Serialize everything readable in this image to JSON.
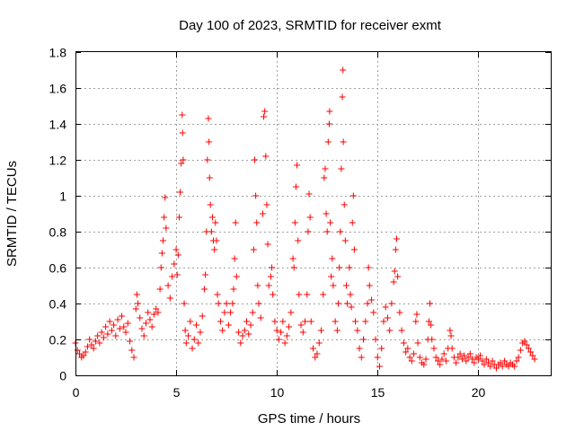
{
  "chart_data": {
    "type": "scatter",
    "title": "Day 100 of 2023, SRMTID for receiver exmt",
    "xlabel": "GPS time / hours",
    "ylabel": "SRMTID / TECUs",
    "xlim": [
      0,
      23.6
    ],
    "ylim": [
      0,
      1.8
    ],
    "xticks": [
      0,
      5,
      10,
      15,
      20
    ],
    "xtick_labels": [
      "0",
      "5",
      "10",
      "15",
      "20"
    ],
    "yticks": [
      0,
      0.2,
      0.4,
      0.6,
      0.8,
      1,
      1.2,
      1.4,
      1.6,
      1.8
    ],
    "ytick_labels": [
      "0",
      "0.2",
      "0.4",
      "0.6",
      "0.8",
      "1",
      "1.2",
      "1.4",
      "1.6",
      "1.8"
    ],
    "grid": true,
    "marker": "plus",
    "color": "#ff0000",
    "series": [
      {
        "name": "SRMTID",
        "points": [
          [
            0.0,
            0.18
          ],
          [
            0.1,
            0.14
          ],
          [
            0.2,
            0.12
          ],
          [
            0.3,
            0.1
          ],
          [
            0.4,
            0.11
          ],
          [
            0.5,
            0.13
          ],
          [
            0.6,
            0.16
          ],
          [
            0.7,
            0.2
          ],
          [
            0.8,
            0.17
          ],
          [
            0.9,
            0.15
          ],
          [
            1.0,
            0.19
          ],
          [
            1.1,
            0.22
          ],
          [
            1.2,
            0.18
          ],
          [
            1.3,
            0.24
          ],
          [
            1.4,
            0.21
          ],
          [
            1.5,
            0.27
          ],
          [
            1.6,
            0.23
          ],
          [
            1.7,
            0.3
          ],
          [
            1.8,
            0.25
          ],
          [
            1.9,
            0.28
          ],
          [
            2.0,
            0.22
          ],
          [
            2.1,
            0.31
          ],
          [
            2.2,
            0.26
          ],
          [
            2.3,
            0.33
          ],
          [
            2.4,
            0.27
          ],
          [
            2.5,
            0.24
          ],
          [
            2.6,
            0.29
          ],
          [
            2.7,
            0.19
          ],
          [
            2.8,
            0.14
          ],
          [
            2.9,
            0.1
          ],
          [
            3.0,
            0.37
          ],
          [
            3.05,
            0.45
          ],
          [
            3.1,
            0.4
          ],
          [
            3.2,
            0.32
          ],
          [
            3.3,
            0.26
          ],
          [
            3.4,
            0.22
          ],
          [
            3.5,
            0.29
          ],
          [
            3.6,
            0.35
          ],
          [
            3.7,
            0.31
          ],
          [
            3.8,
            0.27
          ],
          [
            3.9,
            0.34
          ],
          [
            4.0,
            0.37
          ],
          [
            4.1,
            0.35
          ],
          [
            4.2,
            0.48
          ],
          [
            4.25,
            0.6
          ],
          [
            4.3,
            0.68
          ],
          [
            4.35,
            0.75
          ],
          [
            4.4,
            0.88
          ],
          [
            4.45,
            0.99
          ],
          [
            4.5,
            0.82
          ],
          [
            4.6,
            0.5
          ],
          [
            4.7,
            0.43
          ],
          [
            4.8,
            0.55
          ],
          [
            4.9,
            0.62
          ],
          [
            5.0,
            0.7
          ],
          [
            5.05,
            0.56
          ],
          [
            5.1,
            0.67
          ],
          [
            5.15,
            0.88
          ],
          [
            5.2,
            1.02
          ],
          [
            5.25,
            1.18
          ],
          [
            5.3,
            1.45
          ],
          [
            5.32,
            1.35
          ],
          [
            5.35,
            1.2
          ],
          [
            5.4,
            0.4
          ],
          [
            5.45,
            0.25
          ],
          [
            5.5,
            0.18
          ],
          [
            5.6,
            0.22
          ],
          [
            5.7,
            0.3
          ],
          [
            5.8,
            0.15
          ],
          [
            5.9,
            0.2
          ],
          [
            6.0,
            0.28
          ],
          [
            6.1,
            0.18
          ],
          [
            6.2,
            0.24
          ],
          [
            6.3,
            0.33
          ],
          [
            6.4,
            0.48
          ],
          [
            6.45,
            0.56
          ],
          [
            6.5,
            0.8
          ],
          [
            6.55,
            1.2
          ],
          [
            6.6,
            1.43
          ],
          [
            6.63,
            1.3
          ],
          [
            6.66,
            1.1
          ],
          [
            6.7,
            0.95
          ],
          [
            6.75,
            0.8
          ],
          [
            6.8,
            0.88
          ],
          [
            6.85,
            0.75
          ],
          [
            6.9,
            0.7
          ],
          [
            6.95,
            0.85
          ],
          [
            7.0,
            0.75
          ],
          [
            7.05,
            0.45
          ],
          [
            7.1,
            0.4
          ],
          [
            7.2,
            0.3
          ],
          [
            7.3,
            0.25
          ],
          [
            7.4,
            0.35
          ],
          [
            7.5,
            0.4
          ],
          [
            7.6,
            0.28
          ],
          [
            7.7,
            0.35
          ],
          [
            7.8,
            0.4
          ],
          [
            7.85,
            0.48
          ],
          [
            7.9,
            0.65
          ],
          [
            7.95,
            0.85
          ],
          [
            8.0,
            0.55
          ],
          [
            8.1,
            0.24
          ],
          [
            8.2,
            0.18
          ],
          [
            8.3,
            0.22
          ],
          [
            8.4,
            0.25
          ],
          [
            8.5,
            0.3
          ],
          [
            8.6,
            0.23
          ],
          [
            8.7,
            0.28
          ],
          [
            8.8,
            0.35
          ],
          [
            8.85,
            0.7
          ],
          [
            8.9,
            1.2
          ],
          [
            8.95,
            1.0
          ],
          [
            9.0,
            0.85
          ],
          [
            9.05,
            0.5
          ],
          [
            9.1,
            0.4
          ],
          [
            9.2,
            0.32
          ],
          [
            9.3,
            0.9
          ],
          [
            9.35,
            1.44
          ],
          [
            9.4,
            1.47
          ],
          [
            9.45,
            1.22
          ],
          [
            9.5,
            0.95
          ],
          [
            9.55,
            0.73
          ],
          [
            9.6,
            0.5
          ],
          [
            9.7,
            0.55
          ],
          [
            9.75,
            0.6
          ],
          [
            9.8,
            0.45
          ],
          [
            9.9,
            0.3
          ],
          [
            10.0,
            0.25
          ],
          [
            10.1,
            0.2
          ],
          [
            10.2,
            0.24
          ],
          [
            10.3,
            0.3
          ],
          [
            10.4,
            0.18
          ],
          [
            10.5,
            0.22
          ],
          [
            10.6,
            0.27
          ],
          [
            10.7,
            0.35
          ],
          [
            10.8,
            0.65
          ],
          [
            10.85,
            0.6
          ],
          [
            10.9,
            0.85
          ],
          [
            10.95,
            1.05
          ],
          [
            11.0,
            1.17
          ],
          [
            11.05,
            0.75
          ],
          [
            11.1,
            0.45
          ],
          [
            11.2,
            0.28
          ],
          [
            11.3,
            0.24
          ],
          [
            11.4,
            0.3
          ],
          [
            11.5,
            0.45
          ],
          [
            11.55,
            0.8
          ],
          [
            11.6,
            1.01
          ],
          [
            11.65,
            0.88
          ],
          [
            11.7,
            0.3
          ],
          [
            11.8,
            0.15
          ],
          [
            11.9,
            0.1
          ],
          [
            12.0,
            0.12
          ],
          [
            12.1,
            0.18
          ],
          [
            12.2,
            0.25
          ],
          [
            12.3,
            0.45
          ],
          [
            12.35,
            1.1
          ],
          [
            12.4,
            1.15
          ],
          [
            12.45,
            0.9
          ],
          [
            12.5,
            0.8
          ],
          [
            12.55,
            1.3
          ],
          [
            12.6,
            1.4
          ],
          [
            12.62,
            1.47
          ],
          [
            12.65,
            0.85
          ],
          [
            12.7,
            0.55
          ],
          [
            12.75,
            0.65
          ],
          [
            12.8,
            0.5
          ],
          [
            12.9,
            0.3
          ],
          [
            13.0,
            0.25
          ],
          [
            13.05,
            0.4
          ],
          [
            13.1,
            0.6
          ],
          [
            13.15,
            0.8
          ],
          [
            13.2,
            1.15
          ],
          [
            13.25,
            1.55
          ],
          [
            13.28,
            1.7
          ],
          [
            13.3,
            1.3
          ],
          [
            13.35,
            0.95
          ],
          [
            13.4,
            0.75
          ],
          [
            13.45,
            0.5
          ],
          [
            13.5,
            0.4
          ],
          [
            13.6,
            0.6
          ],
          [
            13.65,
            0.45
          ],
          [
            13.7,
            0.38
          ],
          [
            13.75,
            0.85
          ],
          [
            13.8,
            1.0
          ],
          [
            13.85,
            0.7
          ],
          [
            13.9,
            0.3
          ],
          [
            14.0,
            0.25
          ],
          [
            14.1,
            0.15
          ],
          [
            14.2,
            0.1
          ],
          [
            14.3,
            0.2
          ],
          [
            14.4,
            0.3
          ],
          [
            14.5,
            0.4
          ],
          [
            14.55,
            0.6
          ],
          [
            14.6,
            0.5
          ],
          [
            14.7,
            0.42
          ],
          [
            14.8,
            0.35
          ],
          [
            14.9,
            0.2
          ],
          [
            15.0,
            0.1
          ],
          [
            15.1,
            0.05
          ],
          [
            15.2,
            0.15
          ],
          [
            15.3,
            0.3
          ],
          [
            15.4,
            0.38
          ],
          [
            15.5,
            0.32
          ],
          [
            15.6,
            0.25
          ],
          [
            15.7,
            0.4
          ],
          [
            15.8,
            0.52
          ],
          [
            15.85,
            0.58
          ],
          [
            15.9,
            0.7
          ],
          [
            15.95,
            0.76
          ],
          [
            16.0,
            0.55
          ],
          [
            16.1,
            0.35
          ],
          [
            16.2,
            0.25
          ],
          [
            16.3,
            0.18
          ],
          [
            16.4,
            0.13
          ],
          [
            16.5,
            0.15
          ],
          [
            16.6,
            0.1
          ],
          [
            16.7,
            0.08
          ],
          [
            16.8,
            0.12
          ],
          [
            16.9,
            0.3
          ],
          [
            16.95,
            0.34
          ],
          [
            17.0,
            0.18
          ],
          [
            17.1,
            0.1
          ],
          [
            17.2,
            0.07
          ],
          [
            17.3,
            0.06
          ],
          [
            17.4,
            0.09
          ],
          [
            17.5,
            0.2
          ],
          [
            17.55,
            0.3
          ],
          [
            17.6,
            0.4
          ],
          [
            17.65,
            0.28
          ],
          [
            17.7,
            0.2
          ],
          [
            17.8,
            0.15
          ],
          [
            17.9,
            0.1
          ],
          [
            18.0,
            0.08
          ],
          [
            18.1,
            0.06
          ],
          [
            18.2,
            0.09
          ],
          [
            18.3,
            0.12
          ],
          [
            18.4,
            0.08
          ],
          [
            18.5,
            0.15
          ],
          [
            18.6,
            0.25
          ],
          [
            18.65,
            0.22
          ],
          [
            18.7,
            0.15
          ],
          [
            18.8,
            0.1
          ],
          [
            18.9,
            0.07
          ],
          [
            19.0,
            0.1
          ],
          [
            19.1,
            0.12
          ],
          [
            19.2,
            0.09
          ],
          [
            19.3,
            0.11
          ],
          [
            19.4,
            0.08
          ],
          [
            19.5,
            0.1
          ],
          [
            19.6,
            0.12
          ],
          [
            19.7,
            0.09
          ],
          [
            19.8,
            0.07
          ],
          [
            19.9,
            0.1
          ],
          [
            20.0,
            0.09
          ],
          [
            20.1,
            0.11
          ],
          [
            20.2,
            0.08
          ],
          [
            20.3,
            0.06
          ],
          [
            20.4,
            0.09
          ],
          [
            20.5,
            0.07
          ],
          [
            20.6,
            0.05
          ],
          [
            20.7,
            0.08
          ],
          [
            20.8,
            0.06
          ],
          [
            20.9,
            0.04
          ],
          [
            21.0,
            0.06
          ],
          [
            21.1,
            0.07
          ],
          [
            21.2,
            0.05
          ],
          [
            21.3,
            0.08
          ],
          [
            21.4,
            0.06
          ],
          [
            21.5,
            0.05
          ],
          [
            21.6,
            0.07
          ],
          [
            21.7,
            0.06
          ],
          [
            21.8,
            0.05
          ],
          [
            21.9,
            0.08
          ],
          [
            22.0,
            0.1
          ],
          [
            22.1,
            0.14
          ],
          [
            22.2,
            0.18
          ],
          [
            22.3,
            0.19
          ],
          [
            22.4,
            0.17
          ],
          [
            22.5,
            0.15
          ],
          [
            22.6,
            0.13
          ],
          [
            22.7,
            0.11
          ],
          [
            22.8,
            0.09
          ]
        ]
      }
    ]
  }
}
